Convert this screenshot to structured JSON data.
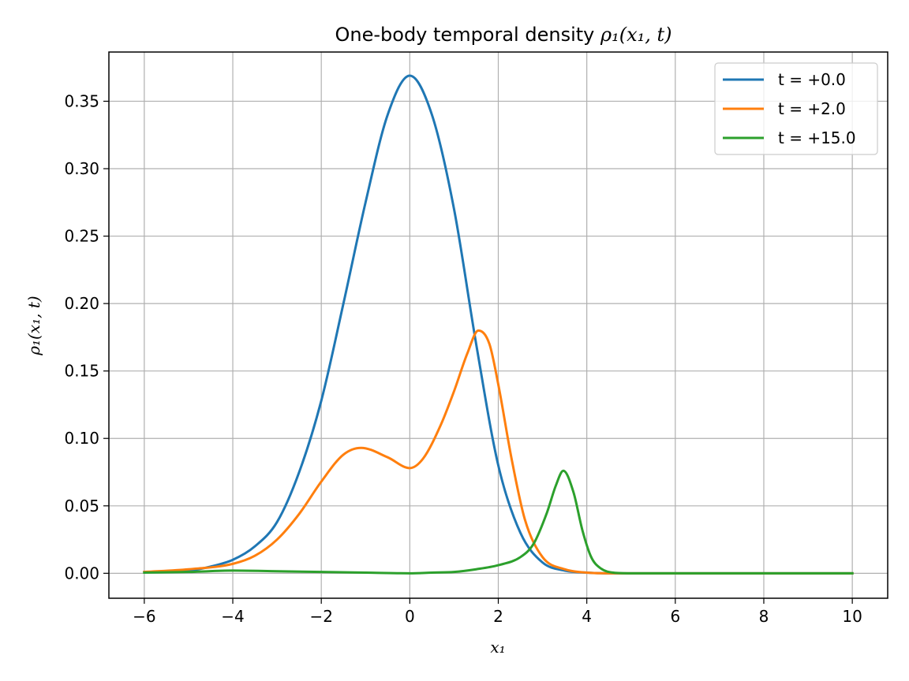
{
  "chart_data": {
    "type": "line",
    "title_text": "One-body temporal density ",
    "title_math": "ρ₁(x₁, t)",
    "xlabel": "x₁",
    "ylabel": "ρ₁(x₁, t)",
    "xlim": [
      -6.8,
      10.8
    ],
    "ylim": [
      -0.0185,
      0.3865
    ],
    "x_ticks": [
      -6,
      -4,
      -2,
      0,
      2,
      4,
      6,
      8,
      10
    ],
    "x_tick_labels": [
      "−6",
      "−4",
      "−2",
      "0",
      "2",
      "4",
      "6",
      "8",
      "10"
    ],
    "y_ticks": [
      0.0,
      0.05,
      0.1,
      0.15,
      0.2,
      0.25,
      0.3,
      0.35
    ],
    "y_tick_labels": [
      "0.00",
      "0.05",
      "0.10",
      "0.15",
      "0.20",
      "0.25",
      "0.30",
      "0.35"
    ],
    "grid": true,
    "legend_position": "top-right",
    "series": [
      {
        "name": "t = +0.0",
        "color": "#1f77b4",
        "x": [
          -6,
          -5,
          -4.5,
          -4,
          -3.5,
          -3,
          -2.5,
          -2,
          -1.5,
          -1,
          -0.5,
          0,
          0.5,
          1,
          1.5,
          2,
          2.5,
          3,
          3.5,
          4,
          4.5,
          5,
          6,
          8,
          10
        ],
        "y": [
          0.001,
          0.002,
          0.005,
          0.01,
          0.02,
          0.038,
          0.075,
          0.128,
          0.2,
          0.275,
          0.34,
          0.369,
          0.34,
          0.27,
          0.17,
          0.08,
          0.03,
          0.008,
          0.002,
          0.0005,
          0.0,
          0.0,
          0.0,
          0.0,
          0.0
        ]
      },
      {
        "name": "t = +2.0",
        "color": "#ff7f0e",
        "x": [
          -6,
          -5,
          -4,
          -3.5,
          -3,
          -2.5,
          -2,
          -1.5,
          -1.1,
          -0.5,
          0,
          0.3,
          0.7,
          1,
          1.3,
          1.55,
          1.8,
          2,
          2.3,
          2.6,
          3,
          3.5,
          4,
          4.5,
          5,
          6,
          8,
          10
        ],
        "y": [
          0.001,
          0.003,
          0.007,
          0.013,
          0.025,
          0.044,
          0.068,
          0.088,
          0.093,
          0.086,
          0.078,
          0.085,
          0.11,
          0.135,
          0.163,
          0.18,
          0.17,
          0.14,
          0.085,
          0.04,
          0.012,
          0.003,
          0.0005,
          0.0,
          0.0,
          0.0,
          0.0,
          0.0
        ]
      },
      {
        "name": "t = +15.0",
        "color": "#2ca02c",
        "x": [
          -6,
          -5,
          -4,
          -3,
          -2,
          -1,
          0,
          0.5,
          1,
          1.5,
          2,
          2.5,
          2.8,
          3.1,
          3.3,
          3.47,
          3.7,
          3.9,
          4.1,
          4.3,
          4.6,
          5,
          6,
          8,
          10
        ],
        "y": [
          0.0005,
          0.001,
          0.002,
          0.0015,
          0.001,
          0.0005,
          0.0,
          0.0005,
          0.001,
          0.003,
          0.006,
          0.012,
          0.022,
          0.045,
          0.065,
          0.076,
          0.06,
          0.032,
          0.012,
          0.004,
          0.0005,
          0.0,
          0.0,
          0.0,
          0.0
        ]
      }
    ]
  }
}
